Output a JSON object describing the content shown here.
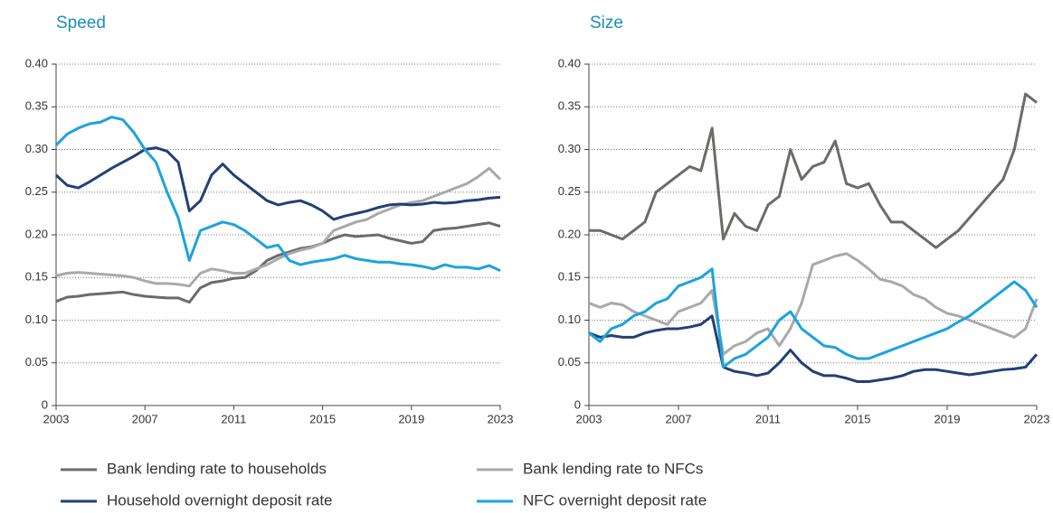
{
  "chart_data": [
    {
      "type": "line",
      "title": "Speed",
      "x": [
        2003,
        2003.5,
        2004,
        2004.5,
        2005,
        2005.5,
        2006,
        2006.5,
        2007,
        2007.5,
        2008,
        2008.5,
        2009,
        2009.5,
        2010,
        2010.5,
        2011,
        2011.5,
        2012,
        2012.5,
        2013,
        2013.5,
        2014,
        2014.5,
        2015,
        2015.5,
        2016,
        2016.5,
        2017,
        2017.5,
        2018,
        2018.5,
        2019,
        2019.5,
        2020,
        2020.5,
        2021,
        2021.5,
        2022,
        2022.5,
        2023
      ],
      "xlim": [
        2003,
        2023
      ],
      "xticks": [
        2003,
        2007,
        2011,
        2015,
        2019,
        2023
      ],
      "ylim": [
        0,
        0.4
      ],
      "yticks": [
        0,
        0.05,
        {
          "value": 0.1,
          "label": "0.10"
        },
        0.15,
        {
          "value": 0.2,
          "label": "0.20"
        },
        0.25,
        {
          "value": 0.3,
          "label": "0.30"
        },
        0.35,
        {
          "value": 0.4,
          "label": "0.40"
        }
      ],
      "grid": true,
      "legend": "bottom",
      "series": [
        {
          "name": "Bank lending rate to households",
          "color": "#6b6c68",
          "values": [
            0.122,
            0.127,
            0.128,
            0.13,
            0.131,
            0.132,
            0.133,
            0.13,
            0.128,
            0.127,
            0.126,
            0.126,
            0.121,
            0.138,
            0.144,
            0.146,
            0.149,
            0.15,
            0.158,
            0.17,
            0.176,
            0.18,
            0.184,
            0.186,
            0.19,
            0.196,
            0.2,
            0.198,
            0.199,
            0.2,
            0.196,
            0.193,
            0.19,
            0.192,
            0.205,
            0.207,
            0.208,
            0.21,
            0.212,
            0.214,
            0.21
          ]
        },
        {
          "name": "Bank lending rate to NFCs",
          "color": "#a9a9a9",
          "values": [
            0.152,
            0.155,
            0.156,
            0.155,
            0.154,
            0.153,
            0.152,
            0.15,
            0.146,
            0.143,
            0.143,
            0.142,
            0.14,
            0.155,
            0.16,
            0.158,
            0.155,
            0.155,
            0.16,
            0.165,
            0.172,
            0.178,
            0.182,
            0.185,
            0.19,
            0.205,
            0.21,
            0.215,
            0.218,
            0.225,
            0.23,
            0.235,
            0.238,
            0.24,
            0.245,
            0.25,
            0.255,
            0.26,
            0.268,
            0.278,
            0.265
          ]
        },
        {
          "name": "Household overnight deposit rate",
          "color": "#233f76",
          "values": [
            0.27,
            0.258,
            0.255,
            0.262,
            0.27,
            0.278,
            0.285,
            0.292,
            0.3,
            0.302,
            0.298,
            0.285,
            0.228,
            0.24,
            0.27,
            0.283,
            0.27,
            0.26,
            0.25,
            0.24,
            0.235,
            0.238,
            0.24,
            0.235,
            0.228,
            0.218,
            0.222,
            0.225,
            0.228,
            0.232,
            0.235,
            0.236,
            0.235,
            0.236,
            0.238,
            0.237,
            0.238,
            0.24,
            0.241,
            0.243,
            0.244
          ]
        },
        {
          "name": "NFC overnight deposit rate",
          "color": "#1ca3dd",
          "values": [
            0.305,
            0.318,
            0.325,
            0.33,
            0.332,
            0.338,
            0.335,
            0.32,
            0.3,
            0.285,
            0.25,
            0.22,
            0.17,
            0.205,
            0.21,
            0.215,
            0.212,
            0.205,
            0.195,
            0.185,
            0.188,
            0.17,
            0.165,
            0.168,
            0.17,
            0.172,
            0.176,
            0.172,
            0.17,
            0.168,
            0.168,
            0.166,
            0.165,
            0.163,
            0.16,
            0.165,
            0.162,
            0.162,
            0.16,
            0.164,
            0.158
          ]
        }
      ]
    },
    {
      "type": "line",
      "title": "Size",
      "x": [
        2003,
        2003.5,
        2004,
        2004.5,
        2005,
        2005.5,
        2006,
        2006.5,
        2007,
        2007.5,
        2008,
        2008.5,
        2009,
        2009.5,
        2010,
        2010.5,
        2011,
        2011.5,
        2012,
        2012.5,
        2013,
        2013.5,
        2014,
        2014.5,
        2015,
        2015.5,
        2016,
        2016.5,
        2017,
        2017.5,
        2018,
        2018.5,
        2019,
        2019.5,
        2020,
        2020.5,
        2021,
        2021.5,
        2022,
        2022.5,
        2023
      ],
      "xlim": [
        2003,
        2023
      ],
      "xticks": [
        2003,
        2007,
        2011,
        2015,
        2019,
        2023
      ],
      "ylim": [
        0,
        0.4
      ],
      "yticks": [
        0,
        0.05,
        {
          "value": 0.1,
          "label": "0.10"
        },
        0.15,
        {
          "value": 0.2,
          "label": "0.20"
        },
        0.25,
        {
          "value": 0.3,
          "label": "0.30"
        },
        0.35,
        {
          "value": 0.4,
          "label": "0.40"
        }
      ],
      "grid": true,
      "series": [
        {
          "color": "#6b6c68",
          "values": [
            0.205,
            0.205,
            0.2,
            0.195,
            0.205,
            0.215,
            0.25,
            0.26,
            0.27,
            0.28,
            0.275,
            0.325,
            0.195,
            0.225,
            0.21,
            0.205,
            0.235,
            0.245,
            0.3,
            0.265,
            0.28,
            0.285,
            0.31,
            0.26,
            0.255,
            0.26,
            0.235,
            0.215,
            0.215,
            0.205,
            0.195,
            0.185,
            0.195,
            0.205,
            0.22,
            0.235,
            0.25,
            0.265,
            0.3,
            0.365,
            0.355
          ]
        },
        {
          "color": "#a9a9a9",
          "values": [
            0.12,
            0.115,
            0.12,
            0.118,
            0.11,
            0.105,
            0.1,
            0.095,
            0.11,
            0.115,
            0.12,
            0.135,
            0.06,
            0.07,
            0.075,
            0.085,
            0.09,
            0.07,
            0.09,
            0.12,
            0.165,
            0.17,
            0.175,
            0.178,
            0.17,
            0.16,
            0.148,
            0.145,
            0.14,
            0.13,
            0.125,
            0.115,
            0.108,
            0.105,
            0.1,
            0.095,
            0.09,
            0.085,
            0.08,
            0.09,
            0.125
          ]
        },
        {
          "color": "#233f76",
          "values": [
            0.085,
            0.08,
            0.082,
            0.08,
            0.08,
            0.085,
            0.088,
            0.09,
            0.09,
            0.092,
            0.095,
            0.105,
            0.045,
            0.04,
            0.038,
            0.035,
            0.038,
            0.05,
            0.065,
            0.05,
            0.04,
            0.035,
            0.035,
            0.032,
            0.028,
            0.028,
            0.03,
            0.032,
            0.035,
            0.04,
            0.042,
            0.042,
            0.04,
            0.038,
            0.036,
            0.038,
            0.04,
            0.042,
            0.043,
            0.045,
            0.06
          ]
        },
        {
          "color": "#1ca3dd",
          "values": [
            0.085,
            0.075,
            0.09,
            0.095,
            0.105,
            0.11,
            0.12,
            0.125,
            0.14,
            0.145,
            0.15,
            0.16,
            0.045,
            0.055,
            0.06,
            0.07,
            0.08,
            0.1,
            0.11,
            0.09,
            0.08,
            0.07,
            0.068,
            0.06,
            0.055,
            0.055,
            0.06,
            0.065,
            0.07,
            0.075,
            0.08,
            0.085,
            0.09,
            0.098,
            0.105,
            0.115,
            0.125,
            0.135,
            0.145,
            0.135,
            0.115
          ]
        }
      ]
    }
  ]
}
